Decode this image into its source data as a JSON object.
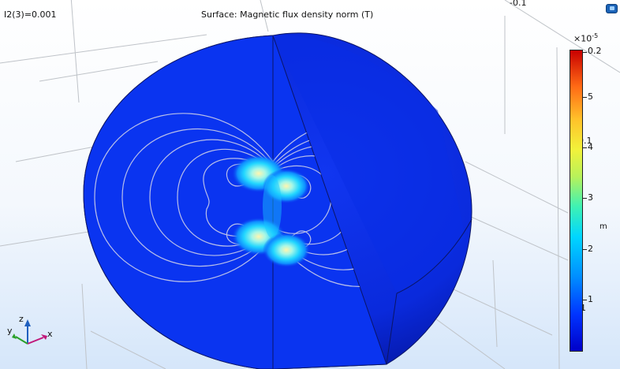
{
  "header": {
    "parameter": "I2(3)=0.001",
    "title": "Surface: Magnetic flux density norm (T)"
  },
  "axis_labels": {
    "top_tick": "-0.1",
    "mid_tick": "0.1",
    "low_tick": "1",
    "unit": "m"
  },
  "triad": {
    "x": "x",
    "y": "y",
    "z": "z"
  },
  "colorbar": {
    "scale_base": "×10",
    "scale_exp": "-5",
    "tick_labels": [
      "0.2",
      "5",
      "4",
      "3",
      "2",
      "1"
    ],
    "colormap": "rainbow (blue → red)",
    "min_color": "#0000c8",
    "max_color": "#c80000"
  },
  "colors": {
    "sphere_surface": "#0a2ee0",
    "field_lines": "#d8d8e8",
    "hotspot": "#ffe99a"
  },
  "icons": {
    "corner": "view-options-icon"
  }
}
